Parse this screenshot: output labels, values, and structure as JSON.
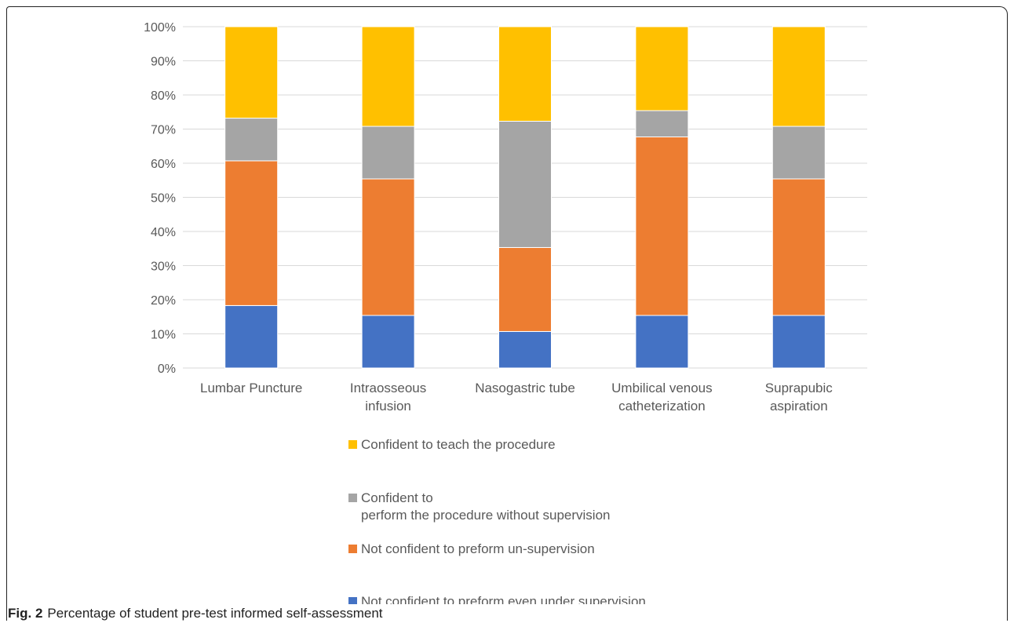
{
  "chart_data": {
    "type": "bar",
    "stacked": true,
    "categories": [
      [
        "Lumbar Puncture"
      ],
      [
        "Intraosseous",
        "infusion"
      ],
      [
        "Nasogastric tube"
      ],
      [
        "Umbilical venous",
        "catheterization"
      ],
      [
        "Suprapubic",
        "aspiration"
      ]
    ],
    "series": [
      {
        "name": "Not confident to preform even under supervision",
        "color": "#4472C4",
        "values": [
          18.3,
          15.4,
          10.7,
          15.4,
          15.4
        ]
      },
      {
        "name": "Not confident to preform un-supervision",
        "color": "#ED7D31",
        "values": [
          42.4,
          40.0,
          24.6,
          52.3,
          40.0
        ]
      },
      {
        "name": "Confident to perform the procedure without supervision",
        "color": "#A5A5A5",
        "legend_lines": [
          "Confident to",
          "perform the procedure without supervision"
        ],
        "values": [
          12.5,
          15.4,
          37.0,
          7.7,
          15.4
        ]
      },
      {
        "name": "Confident to teach the procedure",
        "color": "#FFC000",
        "values": [
          26.8,
          29.2,
          27.7,
          24.6,
          29.2
        ]
      }
    ],
    "ylim": [
      0,
      100
    ],
    "yticks": [
      "0%",
      "10%",
      "20%",
      "30%",
      "40%",
      "50%",
      "60%",
      "70%",
      "80%",
      "90%",
      "100%"
    ],
    "grid": true,
    "legend_position": "bottom"
  },
  "caption": {
    "label": "Fig. 2",
    "text": "Percentage of student pre-test informed self-assessment"
  }
}
